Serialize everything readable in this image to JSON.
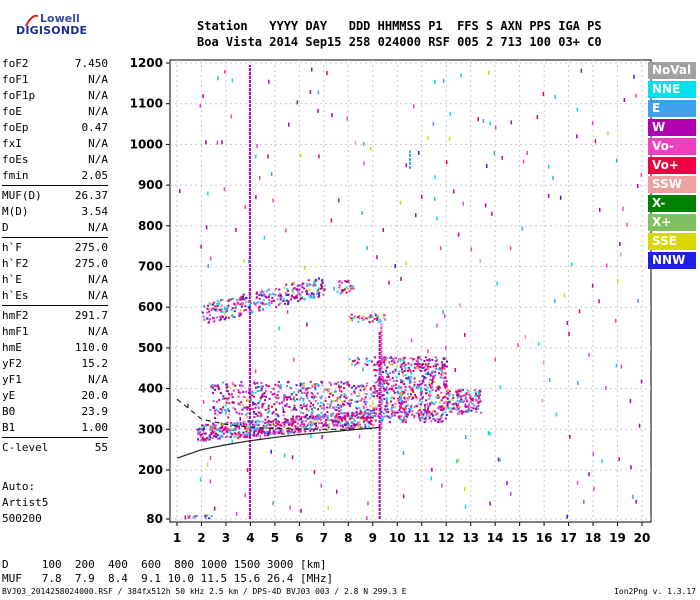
{
  "logo": {
    "line1": "Lowell",
    "line2": "DIGISONDE"
  },
  "header": {
    "line1": "Station   YYYY DAY   DDD HHMMSS P1  FFS S AXN PPS IGA PS",
    "line2": "Boa Vista 2014 Sep15 258 024000 RSF 005 2 713 100 03+ C0"
  },
  "params": [
    {
      "label": "foF2",
      "value": "7.450"
    },
    {
      "label": "foF1",
      "value": "N/A"
    },
    {
      "label": "foF1p",
      "value": "N/A"
    },
    {
      "label": "foE",
      "value": "N/A"
    },
    {
      "label": "foEp",
      "value": "0.47"
    },
    {
      "label": "fxI",
      "value": "N/A"
    },
    {
      "label": "foEs",
      "value": "N/A"
    },
    {
      "label": "fmin",
      "value": "2.05"
    },
    {
      "label": "MUF(D)",
      "value": "26.37"
    },
    {
      "label": "M(D)",
      "value": "3.54"
    },
    {
      "label": "D",
      "value": "N/A"
    },
    {
      "label": "h`F",
      "value": "275.0"
    },
    {
      "label": "h`F2",
      "value": "275.0"
    },
    {
      "label": "h`E",
      "value": "N/A"
    },
    {
      "label": "h`Es",
      "value": "N/A"
    },
    {
      "label": "hmF2",
      "value": "291.7"
    },
    {
      "label": "hmF1",
      "value": "N/A"
    },
    {
      "label": "hmE",
      "value": "110.0"
    },
    {
      "label": "yF2",
      "value": "15.2"
    },
    {
      "label": "yF1",
      "value": "N/A"
    },
    {
      "label": "yE",
      "value": "20.0"
    },
    {
      "label": "B0",
      "value": "23.9"
    },
    {
      "label": "B1",
      "value": "1.00"
    },
    {
      "label": "C-level",
      "value": "55"
    }
  ],
  "auto": {
    "line1": "Auto:",
    "line2": "Artist5",
    "line3": "500200"
  },
  "legend": [
    {
      "label": "NoVal",
      "color": "#a0a0a0"
    },
    {
      "label": "NNE",
      "color": "#00e0f0"
    },
    {
      "label": "E",
      "color": "#40a0f0"
    },
    {
      "label": "W",
      "color": "#b000b0"
    },
    {
      "label": "Vo-",
      "color": "#f040c0"
    },
    {
      "label": "Vo+",
      "color": "#f00040"
    },
    {
      "label": "SSW",
      "color": "#f0a0a0"
    },
    {
      "label": "X-",
      "color": "#008000"
    },
    {
      "label": "X+",
      "color": "#80c060"
    },
    {
      "label": "SSE",
      "color": "#d8d800"
    },
    {
      "label": "NNW",
      "color": "#2020e0"
    }
  ],
  "muf_table": {
    "d_line": "D     100  200  400  600  800 1000 1500 3000 [km]",
    "muf_line": "MUF   7.8  7.9  8.4  9.1 10.0 11.5 15.6 26.4 [MHz]"
  },
  "footer": {
    "left": "BVJ03_2014258024000.RSF / 384fx512h 50 kHz 2.5 km / DPS-4D BVJ03 003 / 2.8 N 299.3 E",
    "right": "Ion2Png v. 1.3.17"
  },
  "chart_data": {
    "type": "scatter",
    "xlim": [
      1,
      20
    ],
    "ylim": [
      80,
      1200
    ],
    "x_ticks": [
      1,
      2,
      3,
      4,
      5,
      6,
      7,
      8,
      9,
      10,
      11,
      12,
      13,
      14,
      15,
      16,
      17,
      18,
      19,
      20
    ],
    "y_ticks": [
      80,
      200,
      300,
      400,
      500,
      600,
      700,
      800,
      900,
      1000,
      1100,
      1200
    ],
    "grid": true,
    "legend_position": "right",
    "fitted_trace": [
      [
        1,
        229
      ],
      [
        2,
        250
      ],
      [
        3,
        262
      ],
      [
        4,
        272
      ],
      [
        5,
        280
      ],
      [
        6,
        287
      ],
      [
        7,
        292
      ],
      [
        8,
        298
      ],
      [
        9,
        303
      ],
      [
        9.3,
        305
      ]
    ],
    "dashed_trace": [
      [
        1,
        374
      ],
      [
        1.5,
        350
      ],
      [
        2,
        325
      ],
      [
        3,
        312
      ],
      [
        4,
        305
      ],
      [
        5,
        302
      ],
      [
        6,
        301
      ],
      [
        7,
        300
      ],
      [
        8,
        300
      ],
      [
        9,
        302
      ]
    ],
    "clusters": [
      {
        "x": [
          1.8,
          9.0
        ],
        "y": [
          280,
          330
        ],
        "n": 700
      },
      {
        "x": [
          2.3,
          9.0
        ],
        "y": [
          330,
          420
        ],
        "n": 520
      },
      {
        "x": [
          9.0,
          12.0
        ],
        "y": [
          320,
          480
        ],
        "n": 650
      },
      {
        "x": [
          12.0,
          13.4
        ],
        "y": [
          340,
          400
        ],
        "n": 140
      },
      {
        "x": [
          2.0,
          7.0
        ],
        "y": [
          575,
          660
        ],
        "n": 320
      },
      {
        "x": [
          7.5,
          8.2
        ],
        "y": [
          635,
          670
        ],
        "n": 30
      },
      {
        "x": [
          8.0,
          9.5
        ],
        "y": [
          565,
          585
        ],
        "n": 40
      },
      {
        "x": [
          8.0,
          9.5
        ],
        "y": [
          460,
          480
        ],
        "n": 30
      },
      {
        "x": [
          1.4,
          2.5
        ],
        "y": [
          84,
          94
        ],
        "n": 16
      },
      {
        "x": [
          1,
          20
        ],
        "y": [
          80,
          1200
        ],
        "n": 240
      }
    ],
    "vertical_streaks": [
      {
        "x": 3.98,
        "y": [
          80,
          1195
        ],
        "color": "#b000b0"
      },
      {
        "x": 9.28,
        "y": [
          80,
          540
        ],
        "color": "#b000b0"
      },
      {
        "x": 9.35,
        "y": [
          300,
          560
        ],
        "color": "#f040c0"
      },
      {
        "x": 10.52,
        "y": [
          940,
          985
        ],
        "color": "#40a0f0"
      }
    ]
  }
}
